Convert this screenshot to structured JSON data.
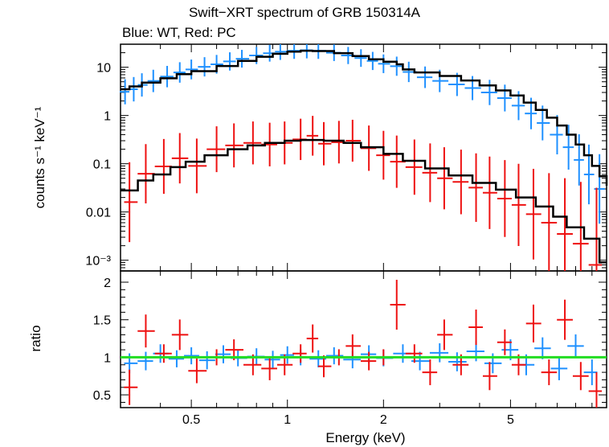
{
  "chart_data": [
    {
      "type": "scatter",
      "title": "Swift−XRT spectrum of GRB 150314A",
      "subtitle": "Blue: WT, Red: PC",
      "xlabel": "",
      "ylabel": "counts s⁻¹ keV⁻¹",
      "xscale": "log",
      "yscale": "log",
      "xlim": [
        0.3,
        10
      ],
      "ylim": [
        0.0006,
        30
      ],
      "y_ticks": [
        {
          "value": 10,
          "label": "10"
        },
        {
          "value": 1,
          "label": "1"
        },
        {
          "value": 0.1,
          "label": "0.1"
        },
        {
          "value": 0.01,
          "label": "0.01"
        },
        {
          "value": 0.001,
          "label": "10⁻³"
        }
      ],
      "series": [
        {
          "name": "WT",
          "color": "#1e90ff",
          "x": [
            0.31,
            0.33,
            0.35,
            0.38,
            0.42,
            0.46,
            0.5,
            0.55,
            0.6,
            0.66,
            0.72,
            0.8,
            0.88,
            0.95,
            1.05,
            1.15,
            1.25,
            1.4,
            1.55,
            1.7,
            1.85,
            2.0,
            2.2,
            2.4,
            2.7,
            3.0,
            3.4,
            3.8,
            4.3,
            4.8,
            5.3,
            5.8,
            6.3,
            7.0,
            7.6,
            8.2,
            8.8,
            9.5
          ],
          "y": [
            3.1,
            3.5,
            4.3,
            5.2,
            6.4,
            7.8,
            9.0,
            10.2,
            11.5,
            13.2,
            15.0,
            17.5,
            19.5,
            21.0,
            22.0,
            22.5,
            22.0,
            20.0,
            17.5,
            15.5,
            13.5,
            11.8,
            10.5,
            8.0,
            6.2,
            5.2,
            4.4,
            3.7,
            3.0,
            2.3,
            1.6,
            1.1,
            0.7,
            0.4,
            0.22,
            0.12,
            0.06,
            0.03
          ]
        },
        {
          "name": "PC",
          "color": "#ee1111",
          "x": [
            0.32,
            0.36,
            0.41,
            0.46,
            0.52,
            0.6,
            0.68,
            0.78,
            0.88,
            0.98,
            1.1,
            1.2,
            1.3,
            1.45,
            1.6,
            1.8,
            2.0,
            2.2,
            2.5,
            2.8,
            3.1,
            3.5,
            3.9,
            4.3,
            4.8,
            5.3,
            5.9,
            6.6,
            7.4,
            8.3,
            9.3
          ],
          "y": [
            0.016,
            0.062,
            0.088,
            0.13,
            0.09,
            0.2,
            0.24,
            0.27,
            0.25,
            0.27,
            0.32,
            0.38,
            0.26,
            0.28,
            0.3,
            0.21,
            0.15,
            0.11,
            0.085,
            0.065,
            0.05,
            0.042,
            0.032,
            0.025,
            0.019,
            0.014,
            0.009,
            0.006,
            0.0035,
            0.0022,
            0.0008
          ]
        },
        {
          "name": "model WT",
          "color": "#000000",
          "x": [
            0.3,
            0.32,
            0.35,
            0.4,
            0.45,
            0.5,
            0.6,
            0.7,
            0.8,
            0.9,
            1.0,
            1.1,
            1.2,
            1.4,
            1.6,
            1.8,
            2.0,
            2.2,
            2.3,
            2.5,
            3.0,
            3.5,
            4.0,
            4.5,
            5.0,
            5.5,
            6.0,
            6.5,
            7.0,
            7.5,
            8.0,
            8.5,
            9.0,
            9.5,
            10.0
          ],
          "y": [
            3.5,
            4.0,
            4.8,
            5.9,
            7.2,
            8.3,
            10.6,
            13.5,
            16.5,
            19.0,
            21.0,
            22.0,
            21.6,
            19.6,
            17.0,
            14.6,
            13.0,
            11.5,
            9.0,
            7.8,
            6.6,
            5.3,
            4.2,
            3.3,
            2.6,
            1.85,
            1.3,
            0.9,
            0.62,
            0.4,
            0.25,
            0.15,
            0.09,
            0.055,
            0.035
          ]
        },
        {
          "name": "model PC",
          "color": "#000000",
          "x": [
            0.3,
            0.34,
            0.38,
            0.43,
            0.48,
            0.55,
            0.65,
            0.75,
            0.85,
            0.98,
            1.1,
            1.3,
            1.5,
            1.7,
            2.0,
            2.3,
            2.7,
            3.2,
            3.8,
            4.5,
            5.2,
            6.0,
            6.8,
            7.5,
            8.5,
            9.5,
            10.0
          ],
          "y": [
            0.028,
            0.045,
            0.06,
            0.085,
            0.11,
            0.15,
            0.2,
            0.24,
            0.27,
            0.3,
            0.31,
            0.3,
            0.27,
            0.22,
            0.16,
            0.115,
            0.08,
            0.057,
            0.04,
            0.029,
            0.02,
            0.013,
            0.008,
            0.0048,
            0.0028,
            0.0009,
            0.0009
          ]
        }
      ]
    },
    {
      "type": "scatter",
      "title": "",
      "xlabel": "Energy (keV)",
      "ylabel": "ratio",
      "xscale": "log",
      "xlim": [
        0.3,
        10
      ],
      "ylim": [
        0.33,
        2.15
      ],
      "x_ticks": [
        {
          "value": 0.5,
          "label": "0.5"
        },
        {
          "value": 1,
          "label": "1"
        },
        {
          "value": 2,
          "label": "2"
        },
        {
          "value": 5,
          "label": "5"
        }
      ],
      "y_ticks": [
        {
          "value": 0.5,
          "label": "0.5"
        },
        {
          "value": 1,
          "label": "1"
        },
        {
          "value": 1.5,
          "label": "1.5"
        },
        {
          "value": 2,
          "label": "2"
        }
      ],
      "reference_line": {
        "y": 1,
        "color": "#22dd22"
      },
      "series": [
        {
          "name": "WT",
          "color": "#1e90ff",
          "x": [
            0.32,
            0.36,
            0.4,
            0.45,
            0.5,
            0.56,
            0.63,
            0.7,
            0.8,
            0.9,
            1.0,
            1.1,
            1.25,
            1.4,
            1.6,
            1.8,
            2.0,
            2.3,
            2.6,
            3.0,
            3.4,
            3.9,
            4.4,
            5.0,
            5.6,
            6.3,
            7.1,
            8.0,
            9.0
          ],
          "y": [
            0.92,
            0.95,
            1.05,
            0.98,
            1.02,
            0.96,
            1.04,
            0.99,
            1.01,
            0.97,
            1.03,
            1.0,
            0.98,
            1.02,
            0.97,
            1.04,
            0.99,
            1.05,
            0.95,
            1.06,
            0.94,
            1.08,
            0.92,
            1.1,
            0.9,
            1.12,
            0.85,
            1.15,
            0.8
          ]
        },
        {
          "name": "PC",
          "color": "#ee1111",
          "x": [
            0.32,
            0.36,
            0.41,
            0.46,
            0.52,
            0.6,
            0.68,
            0.78,
            0.88,
            0.98,
            1.1,
            1.2,
            1.3,
            1.45,
            1.6,
            1.8,
            2.0,
            2.2,
            2.5,
            2.8,
            3.1,
            3.5,
            3.9,
            4.3,
            4.8,
            5.3,
            5.9,
            6.6,
            7.4,
            8.3,
            9.3
          ],
          "y": [
            0.6,
            1.35,
            1.05,
            1.3,
            0.82,
            1.0,
            1.1,
            0.9,
            0.85,
            0.9,
            1.05,
            1.25,
            0.88,
            1.0,
            1.15,
            0.95,
            1.0,
            1.7,
            1.05,
            0.8,
            1.3,
            0.9,
            1.4,
            0.75,
            1.2,
            0.9,
            1.45,
            0.8,
            1.5,
            0.75,
            0.55
          ]
        }
      ]
    }
  ]
}
